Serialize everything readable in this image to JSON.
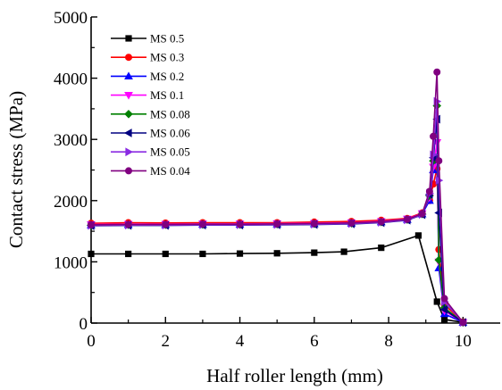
{
  "chart_data": {
    "type": "line",
    "xlabel": "Half roller length (mm)",
    "ylabel": "Contact stress (MPa)",
    "xlim": [
      0,
      11
    ],
    "ylim": [
      0,
      5000
    ],
    "xticks": [
      0,
      2,
      4,
      6,
      8,
      10
    ],
    "yticks": [
      0,
      1000,
      2000,
      3000,
      4000,
      5000
    ],
    "grid": false,
    "legend_position": "top-left",
    "series": [
      {
        "name": "MS 0.5",
        "color": "#000000",
        "marker": "square",
        "x": [
          0,
          1,
          2,
          3,
          4,
          5,
          6,
          6.8,
          7.8,
          8.8,
          9.3,
          9.5,
          10.0
        ],
        "y": [
          1130,
          1130,
          1130,
          1130,
          1135,
          1140,
          1150,
          1165,
          1230,
          1430,
          350,
          60,
          10
        ]
      },
      {
        "name": "MS 0.3",
        "color": "#ff0000",
        "marker": "circle",
        "x": [
          0,
          1,
          2,
          3,
          4,
          5,
          6,
          7,
          7.8,
          8.5,
          8.9,
          9.1,
          9.2,
          9.3,
          9.35,
          9.5,
          10.0
        ],
        "y": [
          1630,
          1640,
          1635,
          1640,
          1640,
          1640,
          1650,
          1660,
          1680,
          1710,
          1800,
          2000,
          2270,
          2520,
          1200,
          300,
          20
        ]
      },
      {
        "name": "MS 0.2",
        "color": "#0000ff",
        "marker": "triangle-up",
        "x": [
          0,
          1,
          2,
          3,
          4,
          5,
          6,
          7,
          7.8,
          8.5,
          8.9,
          9.1,
          9.2,
          9.3,
          9.35,
          9.5,
          10.0
        ],
        "y": [
          1600,
          1605,
          1605,
          1610,
          1610,
          1615,
          1620,
          1630,
          1650,
          1690,
          1780,
          2000,
          2500,
          2700,
          900,
          150,
          10
        ]
      },
      {
        "name": "MS 0.1",
        "color": "#ff00ff",
        "marker": "triangle-down",
        "x": [
          0,
          1,
          2,
          3,
          4,
          5,
          6,
          7,
          7.8,
          8.5,
          8.9,
          9.1,
          9.2,
          9.3,
          9.35,
          9.5,
          10.0
        ],
        "y": [
          1610,
          1615,
          1615,
          1620,
          1620,
          1625,
          1630,
          1640,
          1660,
          1700,
          1790,
          2050,
          2550,
          2950,
          1000,
          200,
          10
        ]
      },
      {
        "name": "MS 0.08",
        "color": "#008000",
        "marker": "diamond",
        "x": [
          0,
          1,
          2,
          3,
          4,
          5,
          6,
          7,
          7.8,
          8.5,
          8.9,
          9.1,
          9.2,
          9.3,
          9.35,
          9.5,
          10.0
        ],
        "y": [
          1600,
          1605,
          1605,
          1610,
          1610,
          1615,
          1620,
          1630,
          1650,
          1690,
          1780,
          2080,
          2650,
          3550,
          1030,
          250,
          10
        ]
      },
      {
        "name": "MS 0.06",
        "color": "#000080",
        "marker": "triangle-left",
        "x": [
          0,
          1,
          2,
          3,
          4,
          5,
          6,
          7,
          7.8,
          8.5,
          8.9,
          9.1,
          9.2,
          9.3,
          9.35,
          9.5,
          10.0
        ],
        "y": [
          1590,
          1595,
          1595,
          1600,
          1600,
          1605,
          1610,
          1620,
          1640,
          1680,
          1770,
          2100,
          2700,
          3330,
          1800,
          220,
          10
        ]
      },
      {
        "name": "MS 0.05",
        "color": "#8a2be2",
        "marker": "triangle-right",
        "x": [
          0,
          1,
          2,
          3,
          4,
          5,
          6,
          7,
          7.8,
          8.5,
          8.9,
          9.1,
          9.2,
          9.3,
          9.35,
          9.5,
          10.0
        ],
        "y": [
          1595,
          1600,
          1600,
          1605,
          1605,
          1610,
          1615,
          1625,
          1645,
          1685,
          1775,
          2120,
          2750,
          3620,
          2330,
          350,
          10
        ]
      },
      {
        "name": "MS 0.04",
        "color": "#800080",
        "marker": "circle",
        "x": [
          0,
          1,
          2,
          3,
          4,
          5,
          6,
          7,
          7.8,
          8.5,
          8.9,
          9.1,
          9.2,
          9.3,
          9.35,
          9.5,
          10.0
        ],
        "y": [
          1605,
          1610,
          1610,
          1615,
          1615,
          1620,
          1625,
          1635,
          1655,
          1695,
          1785,
          2150,
          3050,
          4100,
          2650,
          400,
          10
        ]
      }
    ]
  }
}
